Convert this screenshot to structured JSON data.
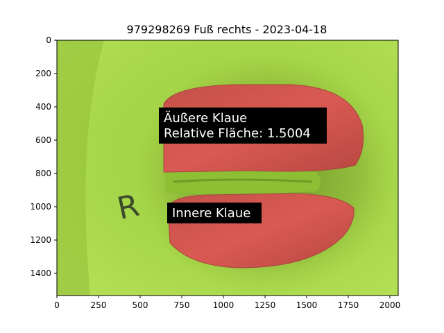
{
  "figure": {
    "title": "979298269 Fuß rechts - 2023-04-18",
    "image_extent": {
      "x": [
        0,
        2048
      ],
      "y": [
        0,
        1536
      ]
    },
    "x_ticks": [
      0,
      250,
      500,
      750,
      1000,
      1250,
      1500,
      1750,
      2000
    ],
    "y_ticks": [
      0,
      200,
      400,
      600,
      800,
      1000,
      1200,
      1400
    ],
    "background_color": "#a7d548",
    "overlay_color": "#d9534f"
  },
  "annotations": {
    "outer": {
      "line1": "Äußere Klaue",
      "line2": "Relative Fläche: 1.5004"
    },
    "inner": {
      "line1": "Innere Klaue"
    }
  },
  "image_marks": {
    "letter": "R"
  }
}
